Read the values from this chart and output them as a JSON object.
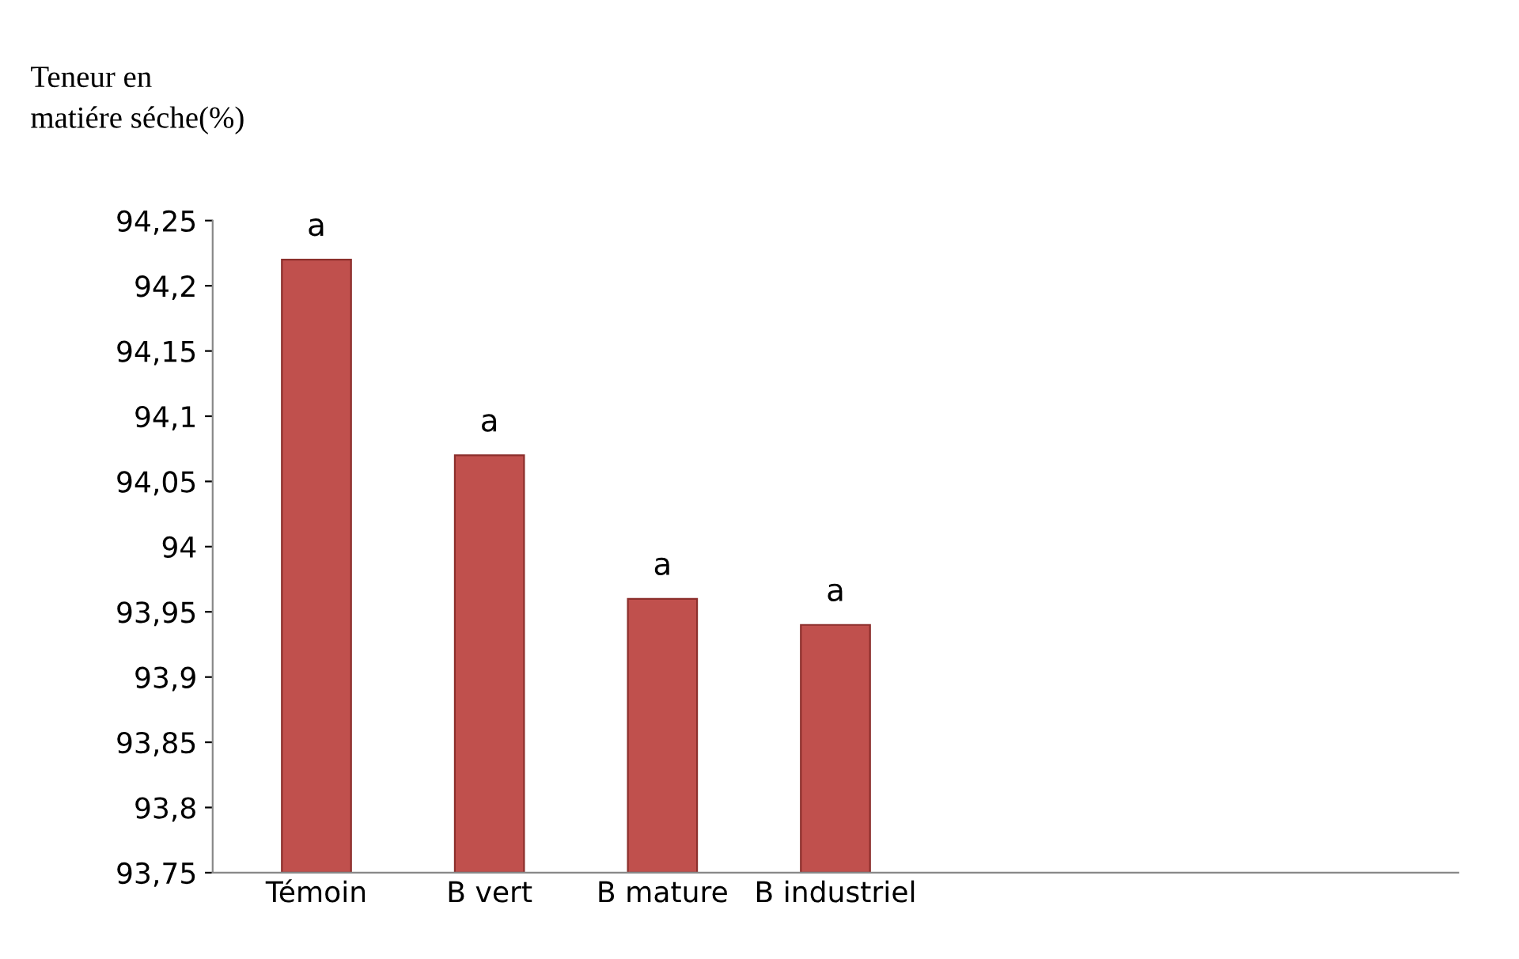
{
  "chart_data": {
    "type": "bar",
    "ylabel": "Teneur en\nmatiére séche(%)",
    "categories": [
      "Témoin",
      "B vert",
      "B mature",
      "B industriel",
      null,
      null,
      null
    ],
    "values": [
      94.22,
      94.07,
      93.96,
      93.94,
      null,
      null,
      null
    ],
    "color": "#c0504d",
    "ylim": [
      93.75,
      94.25
    ],
    "yticks": [
      {
        "value": 93.75,
        "label": "93,75"
      },
      {
        "value": 93.8,
        "label": "93,8"
      },
      {
        "value": 93.85,
        "label": "93,85"
      },
      {
        "value": 93.9,
        "label": "93,9"
      },
      {
        "value": 93.95,
        "label": "93,95"
      },
      {
        "value": 94,
        "label": "94"
      },
      {
        "value": 94.05,
        "label": "94,05"
      },
      {
        "value": 94.1,
        "label": "94,1"
      },
      {
        "value": 94.15,
        "label": "94,15"
      },
      {
        "value": 94.2,
        "label": "94,2"
      },
      {
        "value": 94.25,
        "label": "94,25"
      }
    ],
    "annotations": [
      "a",
      "a",
      "a",
      "a"
    ],
    "grid": false,
    "legend": false
  }
}
